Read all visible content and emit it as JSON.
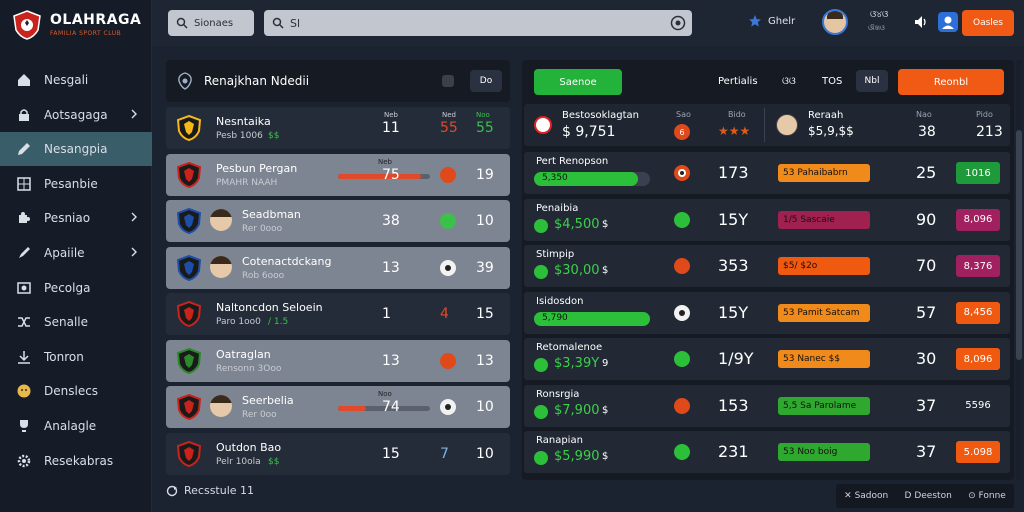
{
  "app": {
    "brand": "OLAHRAGA",
    "tagline": "FAMILIA SPORT CLUB"
  },
  "sidebar": {
    "items": [
      {
        "label": "Nesgali",
        "icon": "home-icon",
        "chevron": false,
        "active": false
      },
      {
        "label": "Aotsagaga",
        "icon": "lock-icon",
        "chevron": true,
        "active": false
      },
      {
        "label": "Nesangpia",
        "icon": "pencil-icon",
        "chevron": false,
        "active": true
      },
      {
        "label": "Pesanbie",
        "icon": "grid-icon",
        "chevron": false,
        "active": false
      },
      {
        "label": "Pesniao",
        "icon": "puzzle-icon",
        "chevron": true,
        "active": false
      },
      {
        "label": "Apaiile",
        "icon": "pen-icon",
        "chevron": true,
        "active": false
      },
      {
        "label": "Pecolga",
        "icon": "picture-icon",
        "chevron": false,
        "active": false
      },
      {
        "label": "Senalle",
        "icon": "shuffle-icon",
        "chevron": false,
        "active": false
      },
      {
        "label": "Tonron",
        "icon": "download-icon",
        "chevron": false,
        "active": false
      },
      {
        "label": "Denslecs",
        "icon": "smiley-icon",
        "chevron": false,
        "active": false
      },
      {
        "label": "Analagle",
        "icon": "trophy-icon",
        "chevron": false,
        "active": false
      },
      {
        "label": "Resekabras",
        "icon": "gear-icon",
        "chevron": false,
        "active": false
      }
    ]
  },
  "topbar": {
    "search_button": "Sionaes",
    "search_value": "Sl",
    "link": "Ghelr",
    "user_top": "ଓ୪ଓ",
    "user_bottom": "ଔଖଓ",
    "action": "Oasles"
  },
  "left_panel": {
    "title": "Renajkhan Ndedii",
    "tab": "Do",
    "rows": [
      {
        "name": "Nesntaika",
        "sub": "Pesb 1006",
        "sub2": "$$",
        "label_a": "Neb",
        "label_b": "Ned",
        "label_c": "Noo",
        "n1": "11",
        "n2": "55",
        "n3": "55",
        "bg": "dark",
        "avatar": false,
        "bar": false
      },
      {
        "name": "Pesbun Pergan",
        "sub": "PMAHR NAAH",
        "n1": "75",
        "bar_label": "Neb",
        "n3": "19",
        "bg": "light",
        "avatar": false,
        "bar": true,
        "bar_fill": 0.9,
        "circ": "orange"
      },
      {
        "name": "Seadbman",
        "sub": "Rer 0ooo",
        "n1": "38",
        "n3": "10",
        "bg": "light",
        "avatar": true,
        "bar": false,
        "circ": "green"
      },
      {
        "name": "Cotenactdckang",
        "sub": "Rob 6ooo",
        "n1": "13",
        "n3": "39",
        "bg": "light",
        "avatar": true,
        "bar": false,
        "circ": "ball"
      },
      {
        "name": "Naltoncdon Seloein",
        "sub": "Paro 1oo0",
        "sub2": "/ 1.5",
        "n1": "1",
        "n2": "4",
        "n3": "15",
        "bg": "dark",
        "avatar": false,
        "bar": false
      },
      {
        "name": "Oatraglan",
        "sub": "Rensonn 3Ooo",
        "n1": "13",
        "n3": "13",
        "bg": "light",
        "avatar": false,
        "bar": false,
        "circ": "orange"
      },
      {
        "name": "Seerbelia",
        "sub": "Rer 0oo",
        "n1": "74",
        "bar_label": "Noo",
        "n3": "10",
        "bg": "light",
        "avatar": true,
        "bar": true,
        "bar_fill": 0.3,
        "circ": "ball"
      },
      {
        "name": "Outdon Bao",
        "sub": "Pelr 10ola",
        "sub2": "$$",
        "n1": "15",
        "n2": "7",
        "n3": "10",
        "bg": "dark",
        "avatar": false,
        "bar": false
      }
    ],
    "footer": "Recsstule 11"
  },
  "right_panel": {
    "tabs": {
      "green": "Saenoe",
      "t1": "Pertialis",
      "t2": "ଓଓ",
      "t3": "TOS",
      "t4": "Nbl",
      "orange": "Reonbl"
    },
    "header_row": {
      "title": "Bestosoklagtan",
      "value": "$ 9,751",
      "circ": "6",
      "label": "Sao",
      "label2": "Bido",
      "stars": "★★★",
      "right_title": "Reraah",
      "right_sub": "$5,9,$$",
      "r1_label": "Nao",
      "r1": "38",
      "r2_label": "Pido",
      "r2": "213"
    },
    "rows": [
      {
        "title": "Pert Renopson",
        "value": "5,350",
        "style": "bar",
        "bar_fill": 0.9,
        "circ": "ball-dark",
        "n": "173",
        "pill": "53 Pahaibabrn",
        "pill_color": "#f08a1a",
        "n2": "25",
        "badge": "1016",
        "badge_color": "#1f9a3a"
      },
      {
        "title": "Penaibia",
        "value": "$4,500",
        "sub2": "$",
        "style": "dot",
        "circ": "green",
        "n": "15Y",
        "pill": "1/5 Sascaie",
        "pill_color": "#a02050",
        "n2": "90",
        "badge": "8,096",
        "badge_color": "#a02060"
      },
      {
        "title": "Stimpip",
        "value": "$30,00",
        "sub2": "$",
        "style": "dot",
        "circ": "orange",
        "n": "353",
        "pill": "$5/ $2o",
        "pill_color": "#f05a10",
        "n2": "70",
        "badge": "8,376",
        "badge_color": "#a02060"
      },
      {
        "title": "Isidosdon",
        "value": "5,790",
        "style": "bar",
        "bar_fill": 1.0,
        "circ": "ball",
        "n": "15Y",
        "pill": "53 Pamit Satcam",
        "pill_color": "#f08a1a",
        "n2": "57",
        "badge": "8,456",
        "badge_color": "#f05a10"
      },
      {
        "title": "Retomalenoe",
        "value": "$3,39Y",
        "sub2": "9",
        "style": "dot",
        "circ": "green",
        "n": "1/9Y",
        "pill": "53 Nanec $$",
        "pill_color": "#f08a1a",
        "n2": "30",
        "badge": "8,096",
        "badge_color": "#f05a10"
      },
      {
        "title": "Ronsrgia",
        "value": "$7,900",
        "sub2": "$",
        "style": "dot",
        "circ": "orange",
        "n": "153",
        "pill": "5,5 Sa Parolame",
        "pill_color": "#2fa82f",
        "n2": "37",
        "badge": "5596",
        "badge_color": "#222935"
      },
      {
        "title": "Ranapian",
        "value": "$5,990",
        "sub2": "$",
        "style": "dot",
        "circ": "green",
        "n": "231",
        "pill": "53 Noo boig",
        "pill_color": "#2fa82f",
        "n2": "37",
        "badge": "5.098",
        "badge_color": "#f05a10"
      }
    ]
  },
  "bottom_bar": {
    "a": "Sadoon",
    "b": "Deeston",
    "c": "Fonne"
  }
}
